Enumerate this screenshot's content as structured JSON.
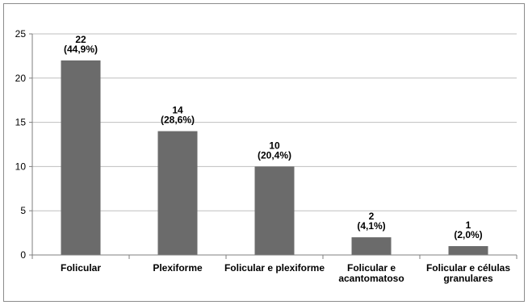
{
  "chart_data": {
    "type": "bar",
    "title": "",
    "xlabel": "",
    "ylabel": "",
    "categories": [
      [
        "Folicular"
      ],
      [
        "Plexiforme"
      ],
      [
        "Folicular e plexiforme"
      ],
      [
        "Folicular e",
        "acantomatoso"
      ],
      [
        "Folicular e células",
        "granulares"
      ]
    ],
    "values": [
      22,
      14,
      10,
      2,
      1
    ],
    "data_labels": [
      [
        "22",
        "(44,9%)"
      ],
      [
        "14",
        "(28,6%)"
      ],
      [
        "10",
        "(20,4%)"
      ],
      [
        "2",
        "(4,1%)"
      ],
      [
        "1",
        "(2,0%)"
      ]
    ],
    "ylim": [
      0,
      25
    ],
    "yticks": [
      0,
      5,
      10,
      15,
      20,
      25
    ],
    "grid": true,
    "legend": "none",
    "colors": {
      "bar": "#6b6b6b",
      "grid": "#bfbfbf",
      "axis": "#7f7f7f",
      "frame": "#8c8c8c"
    }
  }
}
